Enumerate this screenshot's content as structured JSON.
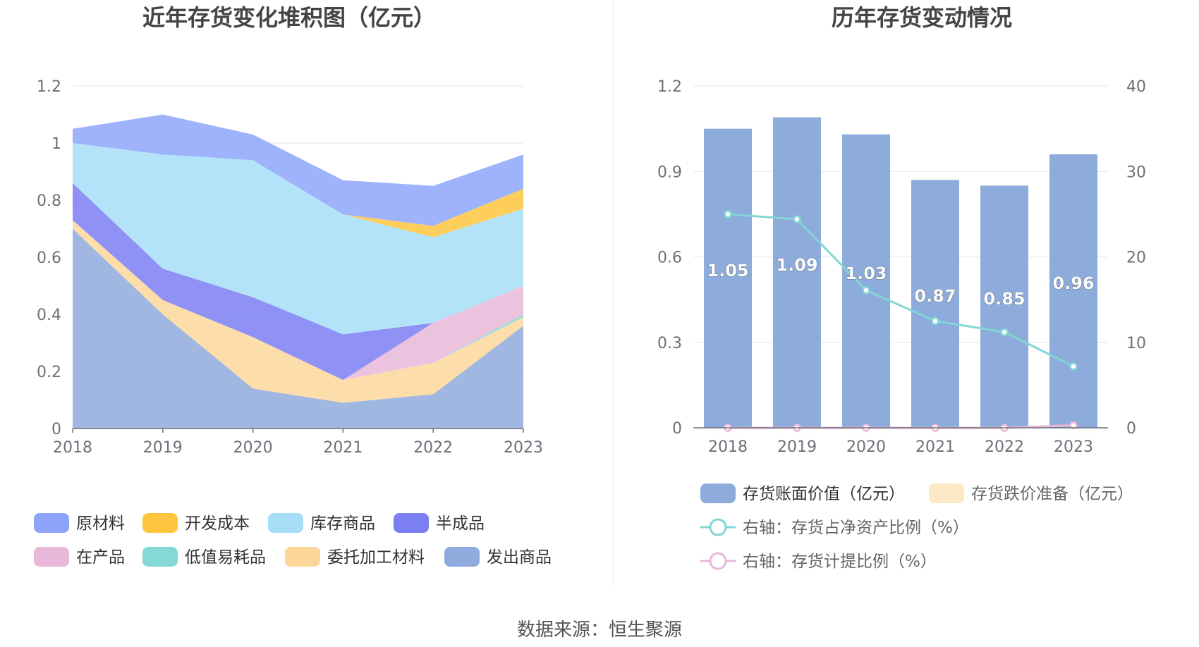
{
  "chart_data": [
    {
      "type": "area",
      "stacked": true,
      "title": "近年存货变化堆积图（亿元）",
      "x": [
        "2018",
        "2019",
        "2020",
        "2021",
        "2022",
        "2023"
      ],
      "ylim": [
        0,
        1.2
      ],
      "yticks": [
        "0",
        "0.2",
        "0.4",
        "0.6",
        "0.8",
        "1",
        "1.2"
      ],
      "grid": true,
      "legend_position": "bottom",
      "series": [
        {
          "name": "发出商品",
          "color": "#8faadc",
          "values": [
            0.7,
            0.4,
            0.14,
            0.09,
            0.12,
            0.36
          ]
        },
        {
          "name": "委托加工材料",
          "color": "#fdd79a",
          "values": [
            0.03,
            0.05,
            0.18,
            0.08,
            0.11,
            0.03
          ]
        },
        {
          "name": "低值易耗品",
          "color": "#84d8d6",
          "values": [
            0,
            0,
            0,
            0,
            0,
            0.01
          ]
        },
        {
          "name": "在产品",
          "color": "#e9b8d9",
          "values": [
            0,
            0,
            0,
            0,
            0.14,
            0.1
          ]
        },
        {
          "name": "半成品",
          "color": "#7b7ff2",
          "values": [
            0.13,
            0.11,
            0.14,
            0.16,
            0,
            0
          ]
        },
        {
          "name": "库存商品",
          "color": "#a6def8",
          "values": [
            0.14,
            0.4,
            0.48,
            0.42,
            0.3,
            0.27
          ]
        },
        {
          "name": "开发成本",
          "color": "#fec63f",
          "values": [
            0,
            0,
            0,
            0,
            0.04,
            0.07
          ]
        },
        {
          "name": "原材料",
          "color": "#8ea4fb",
          "values": [
            0.05,
            0.14,
            0.09,
            0.12,
            0.14,
            0.12
          ]
        }
      ],
      "legend_order": [
        "原材料",
        "开发成本",
        "库存商品",
        "半成品",
        "在产品",
        "低值易耗品",
        "委托加工材料",
        "发出商品"
      ]
    },
    {
      "type": "bar",
      "title": "历年存货变动情况",
      "categories": [
        "2018",
        "2019",
        "2020",
        "2021",
        "2022",
        "2023"
      ],
      "ylim": [
        0,
        1.2
      ],
      "yticks": [
        "0",
        "0.3",
        "0.6",
        "0.9",
        "1.2"
      ],
      "y2lim": [
        0,
        40
      ],
      "y2ticks": [
        "0",
        "10",
        "20",
        "30",
        "40"
      ],
      "grid": true,
      "legend_position": "bottom",
      "series": [
        {
          "name": "存货账面价值（亿元）",
          "type": "bar",
          "axis": "left",
          "color": "#8dacdb",
          "values": [
            1.05,
            1.09,
            1.03,
            0.87,
            0.85,
            0.96
          ],
          "labels": [
            "1.05",
            "1.09",
            "1.03",
            "0.87",
            "0.85",
            "0.96"
          ]
        },
        {
          "name": "存货跌价准备（亿元）",
          "type": "bar",
          "axis": "left",
          "color": "#fde8c4",
          "values": [
            0,
            0,
            0,
            0,
            0,
            0
          ]
        },
        {
          "name": "右轴：存货占净资产比例（%）",
          "type": "line",
          "axis": "right",
          "color": "#84d5d6",
          "values": [
            25.0,
            24.4,
            16.1,
            12.5,
            11.2,
            7.2
          ]
        },
        {
          "name": "右轴：存货计提比例（%）",
          "type": "line",
          "axis": "right",
          "color": "#e9b8d9",
          "values": [
            0,
            0,
            0,
            0,
            0,
            0.3
          ]
        }
      ]
    }
  ],
  "source": "数据来源：恒生聚源"
}
